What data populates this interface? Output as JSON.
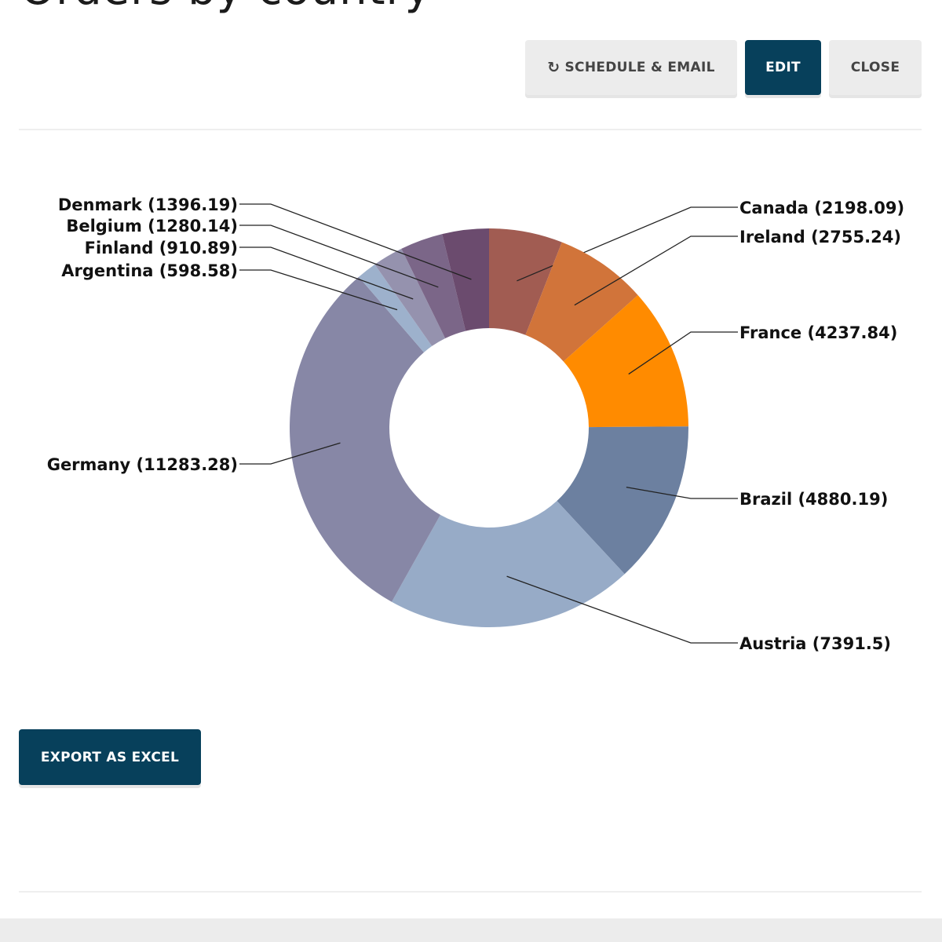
{
  "page": {
    "title": "Orders by country"
  },
  "toolbar": {
    "refresh_icon": "↻",
    "schedule_label": "SCHEDULE & EMAIL",
    "edit_label": "EDIT",
    "close_label": "CLOSE"
  },
  "actions": {
    "export_label": "EXPORT AS EXCEL"
  },
  "colors": {
    "primary": "#07405b",
    "light_button": "#ececec"
  },
  "chart_data": {
    "type": "pie",
    "variant": "donut",
    "title": "Orders by country",
    "slices": [
      {
        "label": "Canada",
        "value": 2198.09,
        "display": "Canada (2198.09)",
        "color": "#a15c52"
      },
      {
        "label": "Ireland",
        "value": 2755.24,
        "display": "Ireland (2755.24)",
        "color": "#d1743a"
      },
      {
        "label": "France",
        "value": 4237.84,
        "display": "France (4237.84)",
        "color": "#ff8b00"
      },
      {
        "label": "Brazil",
        "value": 4880.19,
        "display": "Brazil (4880.19)",
        "color": "#6c80a0"
      },
      {
        "label": "Austria",
        "value": 7391.5,
        "display": "Austria (7391.5)",
        "color": "#97abc7"
      },
      {
        "label": "Germany",
        "value": 11283.28,
        "display": "Germany (11283.28)",
        "color": "#8787a6"
      },
      {
        "label": "Argentina",
        "value": 598.58,
        "display": "Argentina (598.58)",
        "color": "#9db1cc"
      },
      {
        "label": "Finland",
        "value": 910.89,
        "display": "Finland (910.89)",
        "color": "#9592ae"
      },
      {
        "label": "Belgium",
        "value": 1280.14,
        "display": "Belgium (1280.14)",
        "color": "#7b6688"
      },
      {
        "label": "Denmark",
        "value": 1396.19,
        "display": "Denmark (1396.19)",
        "color": "#6b4b6e"
      }
    ]
  }
}
